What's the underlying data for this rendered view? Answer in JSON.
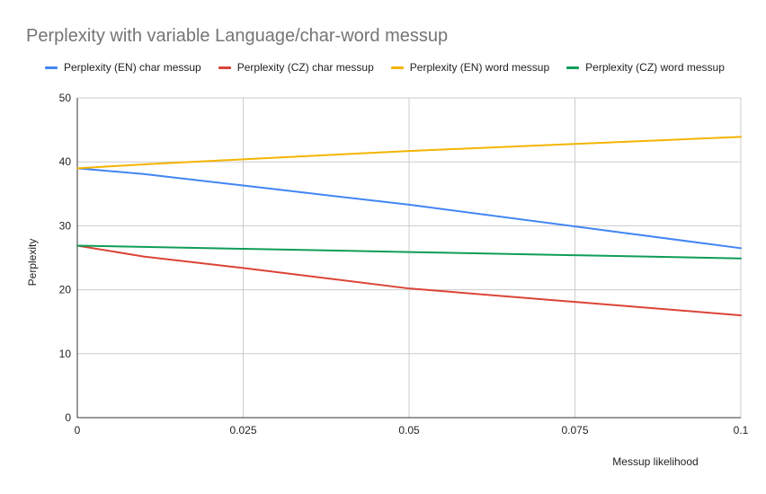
{
  "chart_data": {
    "type": "line",
    "title": "Perplexity with variable Language/char-word messup",
    "xlabel": "Messup likelihood",
    "ylabel": "Perplexity",
    "xlim": [
      0,
      0.1
    ],
    "ylim": [
      0,
      50
    ],
    "x_ticks": [
      "0",
      "0.025",
      "0.05",
      "0.075",
      "0.1"
    ],
    "y_ticks": [
      "0",
      "10",
      "20",
      "30",
      "40",
      "50"
    ],
    "grid": true,
    "legend_position": "top",
    "series": [
      {
        "name": "Perplexity (EN) char messup",
        "color": "#4285F4",
        "x": [
          0,
          0.01,
          0.025,
          0.05,
          0.075,
          0.1
        ],
        "y": [
          39.0,
          38.1,
          36.3,
          33.3,
          29.9,
          26.5
        ]
      },
      {
        "name": "Perplexity (CZ) char messup",
        "color": "#DB4437",
        "x": [
          0,
          0.01,
          0.025,
          0.05,
          0.075,
          0.1
        ],
        "y": [
          26.9,
          25.2,
          23.4,
          20.2,
          18.1,
          16.0
        ]
      },
      {
        "name": "Perplexity (EN) word messup",
        "color": "#F4B400",
        "x": [
          0,
          0.01,
          0.025,
          0.05,
          0.075,
          0.1
        ],
        "y": [
          39.0,
          39.6,
          40.4,
          41.7,
          42.8,
          43.9
        ]
      },
      {
        "name": "Perplexity (CZ) word messup",
        "color": "#0F9D58",
        "x": [
          0,
          0.01,
          0.025,
          0.05,
          0.075,
          0.1
        ],
        "y": [
          26.9,
          26.7,
          26.4,
          25.9,
          25.4,
          24.9
        ]
      }
    ]
  }
}
